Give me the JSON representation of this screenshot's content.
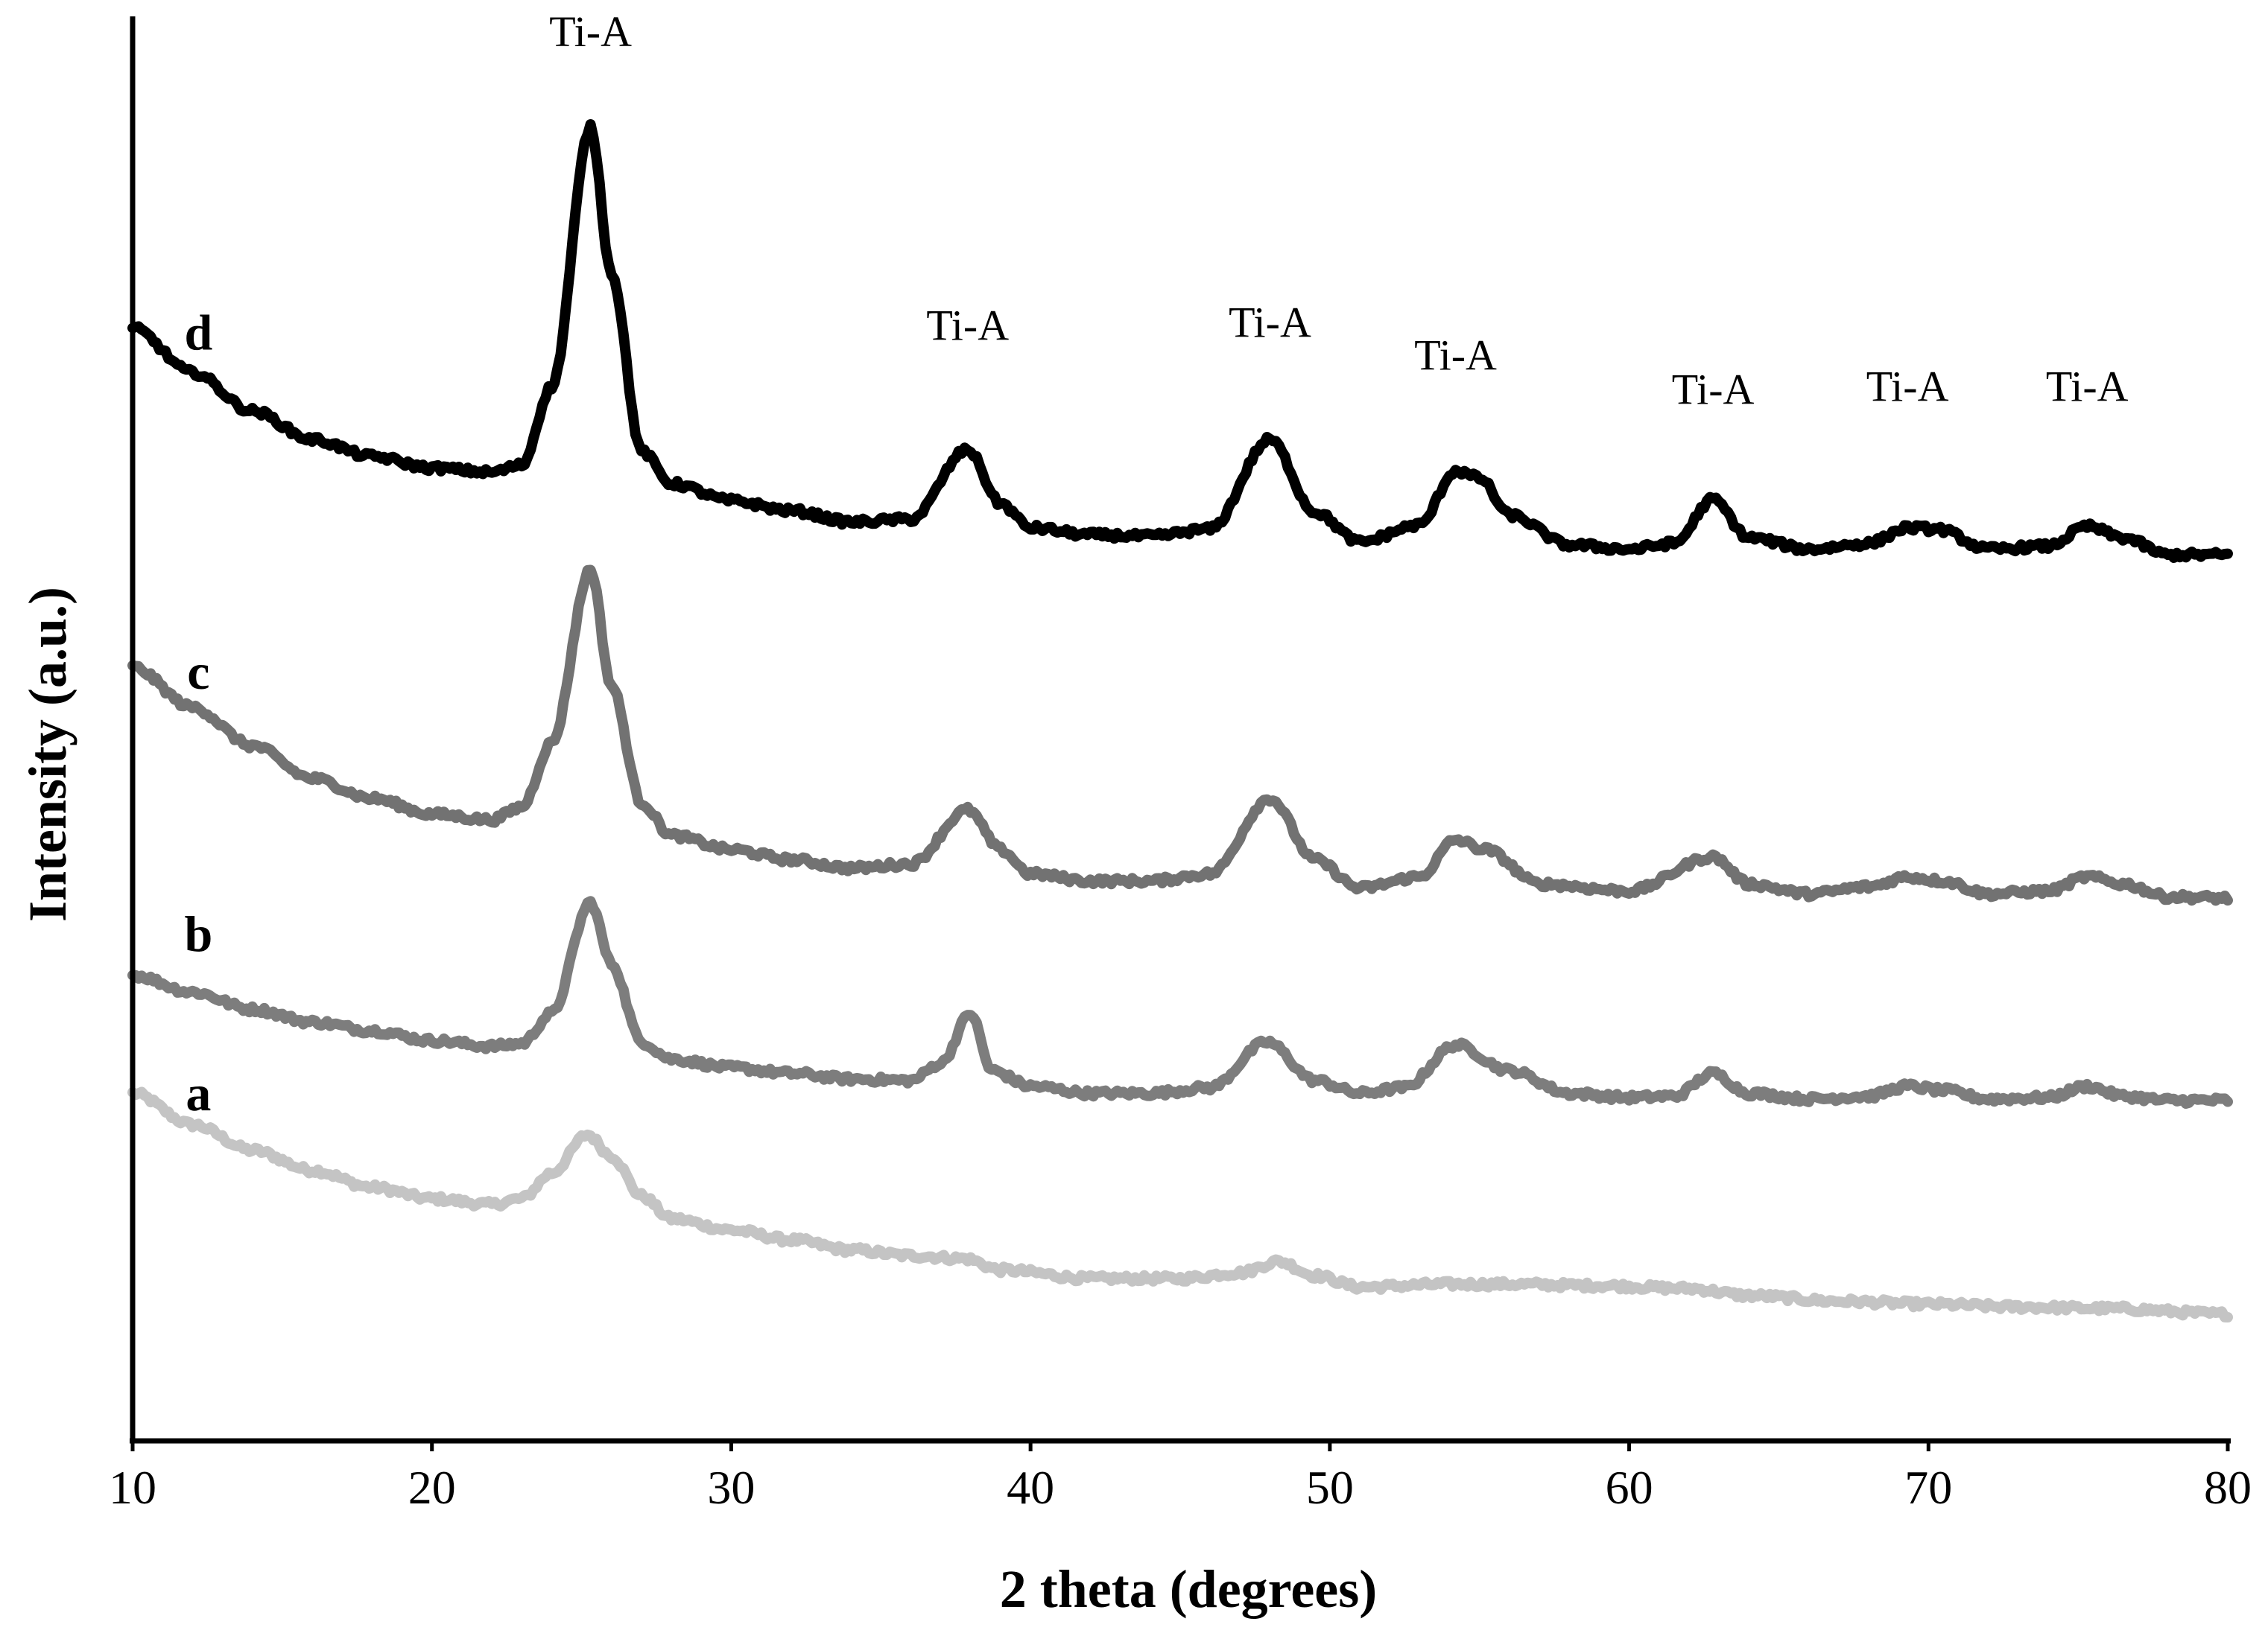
{
  "chart_data": {
    "type": "line",
    "title": "",
    "xlabel": "2 theta (degrees)",
    "ylabel": "Intensity  (a.u.)",
    "xlim": [
      10,
      80
    ],
    "ylim": [
      0,
      100
    ],
    "xticks": [
      10,
      20,
      30,
      40,
      50,
      60,
      70,
      80
    ],
    "y_ticks_shown": false,
    "grid": false,
    "legend": "none (series labelled directly at left: a, b, c, d)",
    "series": [
      {
        "name": "a",
        "color": "#c4c4c4",
        "points": [
          [
            10,
            24.4
          ],
          [
            12,
            22.2
          ],
          [
            14,
            20.4
          ],
          [
            16,
            19.0
          ],
          [
            18,
            17.8
          ],
          [
            20,
            17.0
          ],
          [
            22,
            16.6
          ],
          [
            23,
            17.0
          ],
          [
            24,
            18.8
          ],
          [
            25.2,
            21.5
          ],
          [
            26,
            20.0
          ],
          [
            27,
            17.2
          ],
          [
            28,
            15.6
          ],
          [
            30,
            14.8
          ],
          [
            32,
            14.1
          ],
          [
            34,
            13.4
          ],
          [
            36,
            13.0
          ],
          [
            37.8,
            12.8
          ],
          [
            39,
            12.0
          ],
          [
            42,
            11.4
          ],
          [
            45,
            11.4
          ],
          [
            47,
            11.8
          ],
          [
            48.3,
            12.6
          ],
          [
            49.5,
            11.6
          ],
          [
            51,
            10.8
          ],
          [
            54,
            11.0
          ],
          [
            56,
            11.0
          ],
          [
            59,
            10.9
          ],
          [
            62,
            10.7
          ],
          [
            64,
            10.2
          ],
          [
            67,
            9.8
          ],
          [
            70,
            9.6
          ],
          [
            73,
            9.4
          ],
          [
            76,
            9.3
          ],
          [
            80,
            8.9
          ]
        ]
      },
      {
        "name": "b",
        "color": "#7d7d7d",
        "points": [
          [
            10,
            32.7
          ],
          [
            12,
            31.5
          ],
          [
            14,
            30.3
          ],
          [
            16,
            29.4
          ],
          [
            18,
            28.8
          ],
          [
            20,
            28.1
          ],
          [
            22,
            27.7
          ],
          [
            23,
            27.9
          ],
          [
            24,
            30.0
          ],
          [
            25.3,
            37.8
          ],
          [
            26,
            33.5
          ],
          [
            27,
            28.0
          ],
          [
            28,
            26.8
          ],
          [
            30,
            26.2
          ],
          [
            32,
            25.8
          ],
          [
            34,
            25.4
          ],
          [
            36,
            25.3
          ],
          [
            37,
            26.5
          ],
          [
            38,
            30.0
          ],
          [
            38.7,
            26.0
          ],
          [
            40,
            24.9
          ],
          [
            42,
            24.4
          ],
          [
            44,
            24.4
          ],
          [
            46,
            24.8
          ],
          [
            47.9,
            28.0
          ],
          [
            49.5,
            25.3
          ],
          [
            51,
            24.4
          ],
          [
            52.5,
            24.8
          ],
          [
            54.2,
            27.8
          ],
          [
            56,
            26.0
          ],
          [
            58,
            24.4
          ],
          [
            60,
            24.1
          ],
          [
            61.5,
            24.2
          ],
          [
            62.8,
            25.8
          ],
          [
            64,
            24.4
          ],
          [
            66,
            24.0
          ],
          [
            68,
            24.2
          ],
          [
            69.3,
            24.9
          ],
          [
            70.5,
            24.6
          ],
          [
            72,
            24.0
          ],
          [
            74,
            24.1
          ],
          [
            75.3,
            24.9
          ],
          [
            76.5,
            24.2
          ],
          [
            78,
            23.9
          ],
          [
            80,
            23.9
          ]
        ]
      },
      {
        "name": "c",
        "color": "#727272",
        "points": [
          [
            10,
            54.3
          ],
          [
            12,
            51.5
          ],
          [
            14,
            48.8
          ],
          [
            16,
            46.5
          ],
          [
            18,
            45.1
          ],
          [
            20,
            44.0
          ],
          [
            22,
            43.6
          ],
          [
            23,
            44.5
          ],
          [
            24,
            49.0
          ],
          [
            25.3,
            61.2
          ],
          [
            26,
            53.0
          ],
          [
            27,
            44.8
          ],
          [
            28,
            42.5
          ],
          [
            30,
            41.5
          ],
          [
            32,
            40.8
          ],
          [
            34,
            40.2
          ],
          [
            36,
            40.5
          ],
          [
            37.9,
            44.3
          ],
          [
            39,
            41.5
          ],
          [
            40,
            39.8
          ],
          [
            42,
            39.3
          ],
          [
            44,
            39.3
          ],
          [
            46,
            39.8
          ],
          [
            48,
            45.1
          ],
          [
            49.5,
            40.8
          ],
          [
            51,
            38.8
          ],
          [
            53,
            39.6
          ],
          [
            54.2,
            42.2
          ],
          [
            55.2,
            41.5
          ],
          [
            57,
            39.1
          ],
          [
            60,
            38.6
          ],
          [
            62.8,
            41.0
          ],
          [
            64,
            39.1
          ],
          [
            66,
            38.4
          ],
          [
            68,
            38.9
          ],
          [
            69.3,
            39.6
          ],
          [
            70.5,
            39.3
          ],
          [
            72,
            38.4
          ],
          [
            74,
            38.6
          ],
          [
            75.3,
            39.6
          ],
          [
            76.5,
            39.1
          ],
          [
            78,
            38.2
          ],
          [
            80,
            38.1
          ]
        ]
      },
      {
        "name": "d",
        "color": "#000000",
        "points": [
          [
            10,
            78.1
          ],
          [
            12,
            75.0
          ],
          [
            14,
            72.3
          ],
          [
            16,
            70.3
          ],
          [
            18,
            69.1
          ],
          [
            20,
            68.3
          ],
          [
            22,
            68.0
          ],
          [
            23,
            68.5
          ],
          [
            24,
            74.0
          ],
          [
            25.3,
            92.2
          ],
          [
            26,
            82.0
          ],
          [
            27,
            69.5
          ],
          [
            28,
            67.2
          ],
          [
            30,
            66.0
          ],
          [
            32,
            65.3
          ],
          [
            34,
            64.5
          ],
          [
            36,
            64.7
          ],
          [
            37.9,
            69.6
          ],
          [
            39,
            65.8
          ],
          [
            40,
            64.1
          ],
          [
            42,
            63.6
          ],
          [
            44,
            63.5
          ],
          [
            46,
            64.0
          ],
          [
            48,
            70.3
          ],
          [
            49.5,
            65.2
          ],
          [
            51,
            63.1
          ],
          [
            53,
            64.3
          ],
          [
            54.2,
            68.1
          ],
          [
            55,
            67.6
          ],
          [
            56,
            65.0
          ],
          [
            58,
            62.9
          ],
          [
            60,
            62.6
          ],
          [
            61.5,
            63.0
          ],
          [
            62.8,
            66.1
          ],
          [
            64,
            63.4
          ],
          [
            66,
            62.6
          ],
          [
            68,
            63.0
          ],
          [
            69.3,
            64.1
          ],
          [
            70.3,
            64.0
          ],
          [
            72,
            62.6
          ],
          [
            74,
            62.8
          ],
          [
            75.3,
            64.2
          ],
          [
            76.5,
            63.4
          ],
          [
            78,
            62.2
          ],
          [
            80,
            62.2
          ]
        ]
      }
    ],
    "annotations": [
      {
        "text": "Ti-A",
        "x": 25.3,
        "y": 97.9
      },
      {
        "text": "Ti-A",
        "x": 37.9,
        "y": 77.3
      },
      {
        "text": "Ti-A",
        "x": 48.0,
        "y": 77.5
      },
      {
        "text": "Ti-A",
        "x": 54.2,
        "y": 75.2
      },
      {
        "text": "Ti-A",
        "x": 62.8,
        "y": 72.8
      },
      {
        "text": "Ti-A",
        "x": 69.3,
        "y": 73.0
      },
      {
        "text": "Ti-A",
        "x": 75.3,
        "y": 73.0
      }
    ],
    "series_labels": [
      {
        "text": "a",
        "x": 12.2,
        "y": 23.2
      },
      {
        "text": "b",
        "x": 12.2,
        "y": 34.4
      },
      {
        "text": "c",
        "x": 12.2,
        "y": 52.8
      },
      {
        "text": "d",
        "x": 12.2,
        "y": 76.6
      }
    ]
  }
}
